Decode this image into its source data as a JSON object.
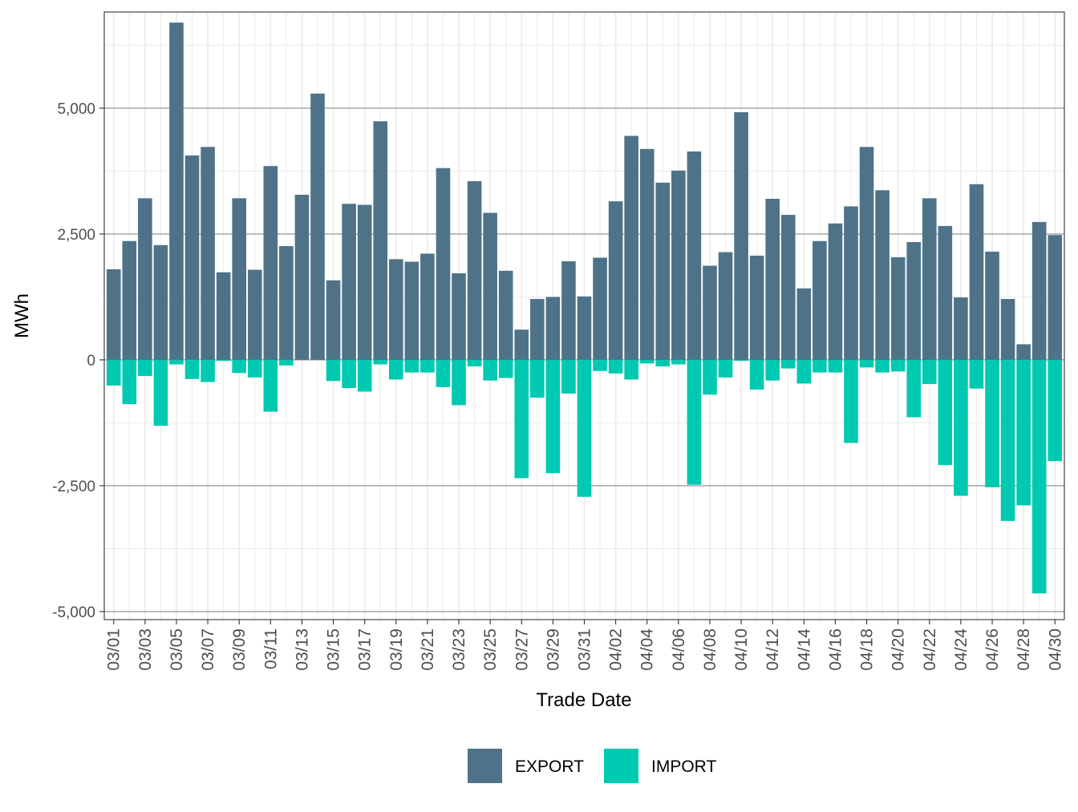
{
  "chart_data": {
    "type": "bar",
    "stacked": true,
    "xlabel": "Trade Date",
    "ylabel": "MWh",
    "ylim": [
      -5000,
      6750
    ],
    "y_ticks": [
      -5000,
      -2500,
      0,
      2500,
      5000
    ],
    "y_tick_labels": [
      "-5,000",
      "-2,500",
      "0",
      "2,500",
      "5,000"
    ],
    "x_tick_labels": [
      "03/01",
      "03/03",
      "03/05",
      "03/07",
      "03/09",
      "03/11",
      "03/13",
      "03/15",
      "03/17",
      "03/19",
      "03/21",
      "03/23",
      "03/25",
      "03/27",
      "03/29",
      "03/31",
      "04/02",
      "04/04",
      "04/06",
      "04/08",
      "04/10",
      "04/12",
      "04/14",
      "04/16",
      "04/18",
      "04/20",
      "04/22",
      "04/24",
      "04/26",
      "04/28",
      "04/30"
    ],
    "categories": [
      "03/01",
      "03/02",
      "03/03",
      "03/04",
      "03/05",
      "03/06",
      "03/07",
      "03/08",
      "03/09",
      "03/10",
      "03/11",
      "03/12",
      "03/13",
      "03/14",
      "03/15",
      "03/16",
      "03/17",
      "03/18",
      "03/19",
      "03/20",
      "03/21",
      "03/22",
      "03/23",
      "03/24",
      "03/25",
      "03/26",
      "03/27",
      "03/28",
      "03/29",
      "03/30",
      "03/31",
      "04/01",
      "04/02",
      "04/03",
      "04/04",
      "04/05",
      "04/06",
      "04/07",
      "04/08",
      "04/09",
      "04/10",
      "04/11",
      "04/12",
      "04/13",
      "04/14",
      "04/15",
      "04/16",
      "04/17",
      "04/18",
      "04/19",
      "04/20",
      "04/21",
      "04/22",
      "04/23",
      "04/24",
      "04/25",
      "04/26",
      "04/27",
      "04/28",
      "04/29",
      "04/30"
    ],
    "series": [
      {
        "name": "EXPORT",
        "color": "#4e7389",
        "values": [
          1800,
          2360,
          3210,
          2280,
          6700,
          4060,
          4230,
          1740,
          3210,
          1790,
          3850,
          2260,
          3280,
          5290,
          1580,
          3100,
          3080,
          4740,
          2000,
          1950,
          2110,
          3810,
          1720,
          3550,
          2920,
          1770,
          600,
          1210,
          1250,
          1960,
          1260,
          2030,
          3150,
          4450,
          4190,
          3520,
          3760,
          4140,
          1870,
          2140,
          4920,
          2070,
          3200,
          2880,
          1420,
          2360,
          2710,
          3050,
          4230,
          3370,
          2040,
          2340,
          3210,
          2660,
          1240,
          3490,
          2150,
          1210,
          310,
          2740,
          2480
        ]
      },
      {
        "name": "IMPORT",
        "color": "#00c9b1",
        "values": [
          -510,
          -880,
          -320,
          -1310,
          -90,
          -380,
          -440,
          -20,
          -260,
          -350,
          -1030,
          -110,
          0,
          0,
          -420,
          -560,
          -630,
          -90,
          -390,
          -250,
          -250,
          -540,
          -900,
          -130,
          -410,
          -360,
          -2350,
          -750,
          -2250,
          -670,
          -2720,
          -220,
          -270,
          -390,
          -70,
          -130,
          -90,
          -2480,
          -690,
          -350,
          -20,
          -590,
          -410,
          -170,
          -470,
          -250,
          -250,
          -1650,
          -150,
          -250,
          -230,
          -1140,
          -480,
          -2090,
          -2700,
          -570,
          -2530,
          -3200,
          -2890,
          -4640,
          -2010
        ]
      }
    ],
    "legend": {
      "position": "bottom",
      "entries": [
        "EXPORT",
        "IMPORT"
      ]
    }
  }
}
